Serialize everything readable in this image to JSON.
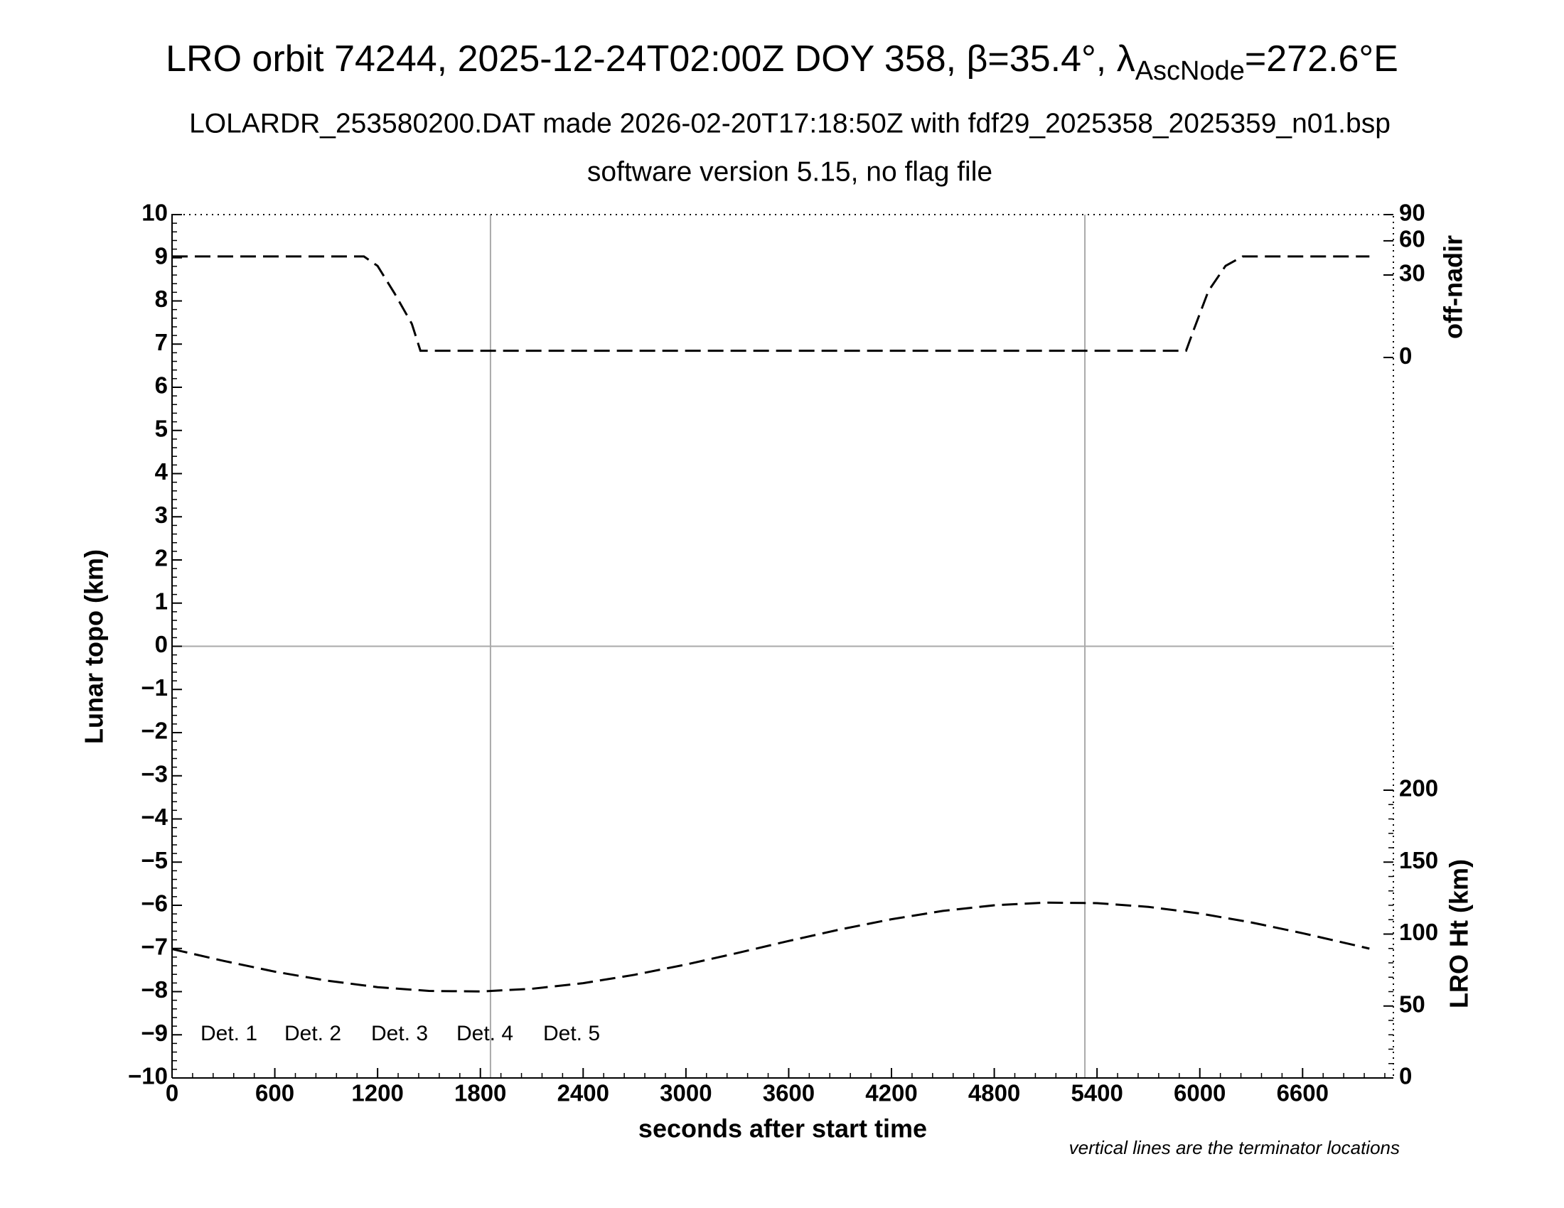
{
  "chart_data": {
    "type": "line",
    "title": {
      "main": "LRO orbit 74244, 2025-12-24T02:00Z DOY 358, β=35.4°, λ",
      "sub": "AscNode",
      "end": "=272.6°E"
    },
    "subtitle": [
      "LOLARDR_253580200.DAT made 2026-02-20T17:18:50Z with fdf29_2025358_2025359_n01.bsp",
      "software version 5.15, no flag file"
    ],
    "xlabel": "seconds after start time",
    "ylabel": "Lunar topo (km)",
    "y2label": "off-nadir",
    "y3label": "LRO Ht (km)",
    "note": "vertical lines are the terminator locations",
    "xlim": [
      0,
      7130
    ],
    "xticks": [
      0,
      600,
      1200,
      1800,
      2400,
      3000,
      3600,
      4200,
      4800,
      5400,
      6000,
      6600
    ],
    "ylim": [
      -10,
      10
    ],
    "yticks": [
      {
        "value": -10,
        "label": "−10"
      },
      {
        "value": -9,
        "label": "−9"
      },
      {
        "value": -8,
        "label": "−8"
      },
      {
        "value": -7,
        "label": "−7"
      },
      {
        "value": -6,
        "label": "−6"
      },
      {
        "value": -5,
        "label": "−5"
      },
      {
        "value": -4,
        "label": "−4"
      },
      {
        "value": -3,
        "label": "−3"
      },
      {
        "value": -2,
        "label": "−2"
      },
      {
        "value": -1,
        "label": "−1"
      },
      0,
      1,
      2,
      3,
      4,
      5,
      6,
      7,
      8,
      9,
      10
    ],
    "y2lim": [
      0,
      90
    ],
    "y2scale": "sqrt",
    "y2ticks": [
      0,
      30,
      60,
      90
    ],
    "y3lim": [
      0,
      300
    ],
    "y3ticks": [
      0,
      50,
      100,
      150,
      200
    ],
    "terminators": [
      1859,
      5329
    ],
    "legend": [
      {
        "name": "Det. 1",
        "color": "#000000"
      },
      {
        "name": "Det. 2",
        "color": "#0000ff"
      },
      {
        "name": "Det. 3",
        "color": "#00ee00"
      },
      {
        "name": "Det. 4",
        "color": "#ffa500"
      },
      {
        "name": "Det. 5",
        "color": "#ff0000"
      }
    ],
    "series": [
      {
        "name": "off-nadir",
        "axis": "y2",
        "color": "#000000",
        "x": [
          0,
          1120,
          1200,
          1300,
          1400,
          1450,
          5920,
          5960,
          6050,
          6150,
          6250,
          6990
        ],
        "values": [
          45,
          45,
          37,
          18,
          5,
          0.2,
          0.2,
          2.9,
          19.5,
          37,
          45,
          45
        ]
      },
      {
        "name": "LRO Ht",
        "axis": "y3",
        "color": "#000000",
        "x": [
          0,
          300,
          600,
          900,
          1200,
          1500,
          1800,
          2100,
          2400,
          2700,
          3000,
          3300,
          3600,
          3900,
          4200,
          4500,
          4800,
          5100,
          5400,
          5700,
          6000,
          6300,
          6600,
          6900,
          6990
        ],
        "values": [
          89.6,
          81.4,
          73.9,
          67.7,
          63.1,
          60.5,
          60.1,
          62.0,
          65.9,
          71.7,
          78.8,
          86.8,
          95.2,
          103.2,
          110.3,
          116.1,
          120.0,
          121.9,
          121.5,
          118.9,
          114.3,
          108.1,
          100.6,
          92.4,
          89.9
        ]
      }
    ]
  }
}
